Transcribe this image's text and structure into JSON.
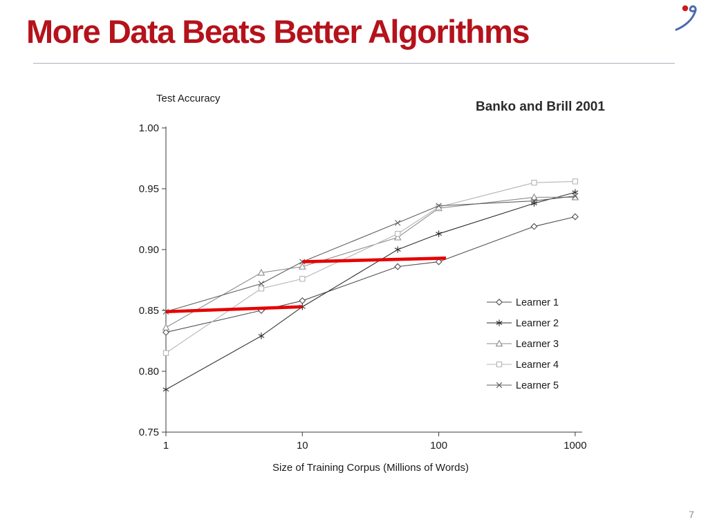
{
  "slide": {
    "title": "More Data Beats Better Algorithms",
    "page_number": "7"
  },
  "colors": {
    "title_red": "#b5121b",
    "highlight_red": "#e60000",
    "logo_blue": "#4a6aae",
    "logo_red": "#cc1a1a"
  },
  "chart_data": {
    "type": "line",
    "annotation": "Banko and Brill 2001",
    "ylabel": "Test Accuracy",
    "xlabel": "Size of Training Corpus (Millions of Words)",
    "x_scale": "log",
    "xlim": [
      1,
      1300
    ],
    "ylim": [
      0.75,
      1.0
    ],
    "x_ticks": [
      "1",
      "10",
      "100",
      "1000"
    ],
    "y_ticks": [
      0.75,
      0.8,
      0.85,
      0.9,
      0.95,
      1.0
    ],
    "x": [
      1,
      5,
      10,
      50,
      100,
      500,
      1000
    ],
    "series": [
      {
        "name": "Learner 1",
        "marker": "diamond",
        "color": "#4d4d4d",
        "values": [
          0.832,
          0.85,
          0.858,
          0.886,
          0.89,
          0.919,
          0.927
        ]
      },
      {
        "name": "Learner 2",
        "marker": "star",
        "color": "#2e2e2e",
        "values": [
          0.785,
          0.829,
          0.853,
          0.9,
          0.913,
          0.938,
          0.947
        ]
      },
      {
        "name": "Learner 3",
        "marker": "triangle",
        "color": "#8a8a8a",
        "values": [
          0.836,
          0.881,
          0.886,
          0.91,
          0.934,
          0.943,
          0.943
        ]
      },
      {
        "name": "Learner 4",
        "marker": "square",
        "color": "#b4b4b4",
        "values": [
          0.815,
          0.868,
          0.876,
          0.913,
          0.935,
          0.955,
          0.956
        ]
      },
      {
        "name": "Learner 5",
        "marker": "x",
        "color": "#5e5e5e",
        "values": [
          0.849,
          0.872,
          0.89,
          0.922,
          0.936,
          0.94,
          0.944
        ]
      }
    ],
    "highlight_color": "#e60000",
    "highlight_segments": [
      {
        "x1": 1,
        "y1": 0.849,
        "x2": 10,
        "y2": 0.853
      },
      {
        "x1": 10,
        "y1": 0.89,
        "x2": 113,
        "y2": 0.893
      }
    ],
    "legend_position": "right",
    "grid": false
  }
}
